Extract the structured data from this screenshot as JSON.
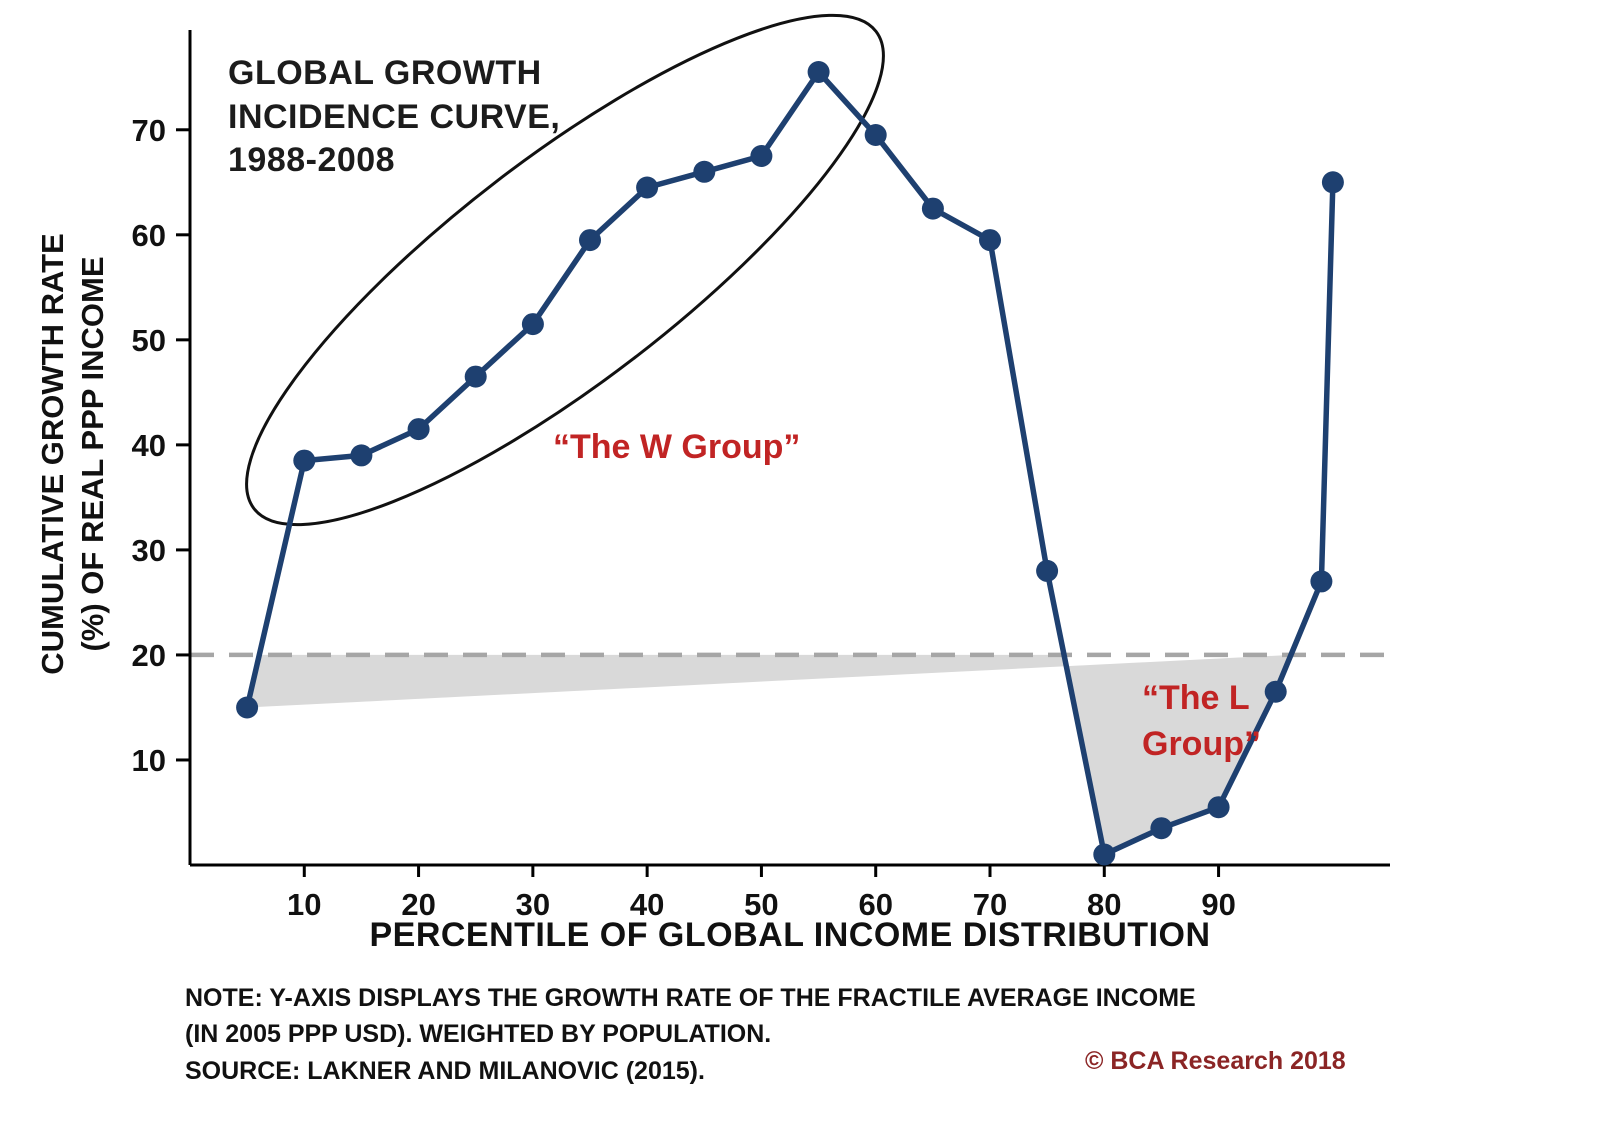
{
  "colors": {
    "line": "#1e4070",
    "annotation_red": "#c12424",
    "shade": "#d9d9d9",
    "dashed_line": "#a6a6a6",
    "axis": "#000000",
    "ellipse": "#111111",
    "copyright_red": "#8b2525"
  },
  "title": "GLOBAL GROWTH\nINCIDENCE CURVE,\n1988-2008",
  "y_axis_label": "CUMULATIVE GROWTH RATE\n(%) OF REAL PPP INCOME",
  "x_axis_label": "PERCENTILE OF GLOBAL INCOME DISTRIBUTION",
  "annotations": {
    "w_group": "“The W Group”",
    "l_group": "“The L\nGroup”"
  },
  "notes": "NOTE: Y-AXIS DISPLAYS THE GROWTH RATE OF THE FRACTILE AVERAGE INCOME\n(IN 2005 PPP USD). WEIGHTED BY POPULATION.\nSOURCE: LAKNER AND MILANOVIC (2015).",
  "copyright": "© BCA Research 2018",
  "chart_data": {
    "type": "line",
    "title": "GLOBAL GROWTH INCIDENCE CURVE, 1988-2008",
    "xlabel": "PERCENTILE OF GLOBAL INCOME DISTRIBUTION",
    "ylabel": "CUMULATIVE GROWTH RATE (%) OF REAL PPP INCOME",
    "x": [
      5,
      10,
      15,
      20,
      25,
      30,
      35,
      40,
      45,
      50,
      55,
      60,
      65,
      70,
      75,
      80,
      85,
      90,
      95,
      99,
      100
    ],
    "y": [
      15,
      38.5,
      39,
      41.5,
      46.5,
      51.5,
      59.5,
      64.5,
      66,
      67.5,
      75.5,
      69.5,
      62.5,
      59.5,
      28,
      1,
      3.5,
      5.5,
      16.5,
      27,
      65
    ],
    "x_ticks": [
      10,
      20,
      30,
      40,
      50,
      60,
      70,
      80,
      90
    ],
    "y_ticks": [
      10,
      20,
      30,
      40,
      50,
      60,
      70
    ],
    "xlim": [
      0,
      105
    ],
    "ylim": [
      0,
      79.5
    ],
    "reference_line_y": 20,
    "grid": false,
    "legend": "none",
    "marker": "filled-circle",
    "annotations": [
      {
        "label": "“The W Group”",
        "meaning": "ellipse around rising segment, percentiles ~10-57"
      },
      {
        "label": "“The L Group”",
        "meaning": "gray shaded area below reference line y=20, percentiles ~76-96"
      }
    ]
  }
}
